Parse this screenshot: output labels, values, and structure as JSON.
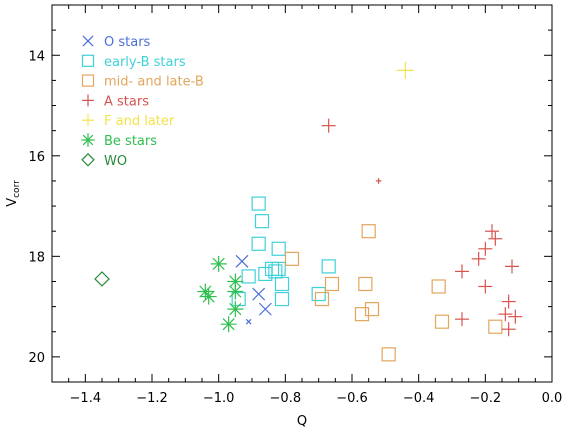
{
  "chart_data": {
    "type": "scatter",
    "xlabel": "Q",
    "ylabel": "V",
    "ylabel_subscript": "corr",
    "xlim": [
      -1.5,
      0.0
    ],
    "ylim": [
      20.5,
      13.0
    ],
    "y_inverted": true,
    "x_ticks": [
      -1.4,
      -1.2,
      -1.0,
      -0.8,
      -0.6,
      -0.4,
      -0.2,
      0.0
    ],
    "x_tick_labels": [
      "−1.4",
      "−1.2",
      "−1.0",
      "−0.8",
      "−0.6",
      "−0.4",
      "−0.2",
      "0.0"
    ],
    "y_ticks": [
      14,
      16,
      18,
      20
    ],
    "y_tick_labels": [
      "14",
      "16",
      "18",
      "20"
    ],
    "grid": false,
    "legend_position": "top-left",
    "series": [
      {
        "name": "O stars",
        "marker": "x",
        "color": "#4a6fd6",
        "points": [
          [
            -0.93,
            18.1
          ],
          [
            -0.88,
            18.75
          ],
          [
            -0.86,
            19.05
          ],
          [
            -0.91,
            19.3
          ]
        ],
        "sizes": [
          1,
          1,
          1,
          0.4
        ]
      },
      {
        "name": "early-B stars",
        "marker": "square",
        "color": "#3fd1d9",
        "points": [
          [
            -0.88,
            16.95
          ],
          [
            -0.87,
            17.3
          ],
          [
            -0.88,
            17.75
          ],
          [
            -0.82,
            17.85
          ],
          [
            -0.84,
            18.25
          ],
          [
            -0.83,
            18.3
          ],
          [
            -0.82,
            18.25
          ],
          [
            -0.91,
            18.4
          ],
          [
            -0.86,
            18.35
          ],
          [
            -0.81,
            18.55
          ],
          [
            -0.81,
            18.85
          ],
          [
            -0.7,
            18.75
          ],
          [
            -0.67,
            18.2
          ],
          [
            -0.94,
            18.85
          ]
        ],
        "sizes": [
          1,
          1,
          1,
          1,
          1,
          1,
          1,
          1,
          1,
          1,
          1,
          1,
          1,
          1
        ]
      },
      {
        "name": "mid- and late-B",
        "marker": "square",
        "color": "#e3a65c",
        "points": [
          [
            -0.78,
            18.05
          ],
          [
            -0.69,
            18.85
          ],
          [
            -0.66,
            18.55
          ],
          [
            -0.55,
            17.5
          ],
          [
            -0.56,
            18.55
          ],
          [
            -0.57,
            19.15
          ],
          [
            -0.54,
            19.05
          ],
          [
            -0.49,
            19.95
          ],
          [
            -0.34,
            18.6
          ],
          [
            -0.33,
            19.3
          ],
          [
            -0.17,
            19.4
          ]
        ],
        "sizes": [
          1,
          1,
          1,
          1,
          1,
          1,
          1,
          1,
          1,
          1,
          1
        ]
      },
      {
        "name": "A stars",
        "marker": "plus",
        "color": "#d9534f",
        "points": [
          [
            -0.67,
            15.4
          ],
          [
            -0.52,
            16.5
          ],
          [
            -0.27,
            18.3
          ],
          [
            -0.27,
            19.25
          ],
          [
            -0.22,
            18.05
          ],
          [
            -0.2,
            17.85
          ],
          [
            -0.18,
            17.5
          ],
          [
            -0.17,
            17.65
          ],
          [
            -0.2,
            18.6
          ],
          [
            -0.12,
            18.2
          ],
          [
            -0.13,
            18.9
          ],
          [
            -0.14,
            19.15
          ],
          [
            -0.11,
            19.2
          ],
          [
            -0.13,
            19.45
          ]
        ],
        "sizes": [
          1,
          0.4,
          1,
          1,
          1,
          1,
          1,
          1,
          1,
          1,
          1,
          1,
          1,
          1
        ]
      },
      {
        "name": "F and later",
        "marker": "plus",
        "color": "#f2e24a",
        "points": [
          [
            -0.44,
            14.3
          ]
        ],
        "sizes": [
          1.2
        ]
      },
      {
        "name": "Be stars",
        "marker": "asterisk",
        "color": "#2fbf4f",
        "points": [
          [
            -1.04,
            18.7
          ],
          [
            -1.03,
            18.8
          ],
          [
            -1.0,
            18.15
          ],
          [
            -0.95,
            18.5
          ],
          [
            -0.95,
            18.7
          ],
          [
            -0.95,
            19.05
          ],
          [
            -0.97,
            19.35
          ]
        ],
        "sizes": [
          1,
          1,
          1,
          1,
          1,
          1,
          1
        ]
      },
      {
        "name": "WO",
        "marker": "diamond",
        "color": "#2a8a3a",
        "points": [
          [
            -1.35,
            18.45
          ]
        ],
        "sizes": [
          1
        ]
      }
    ]
  }
}
